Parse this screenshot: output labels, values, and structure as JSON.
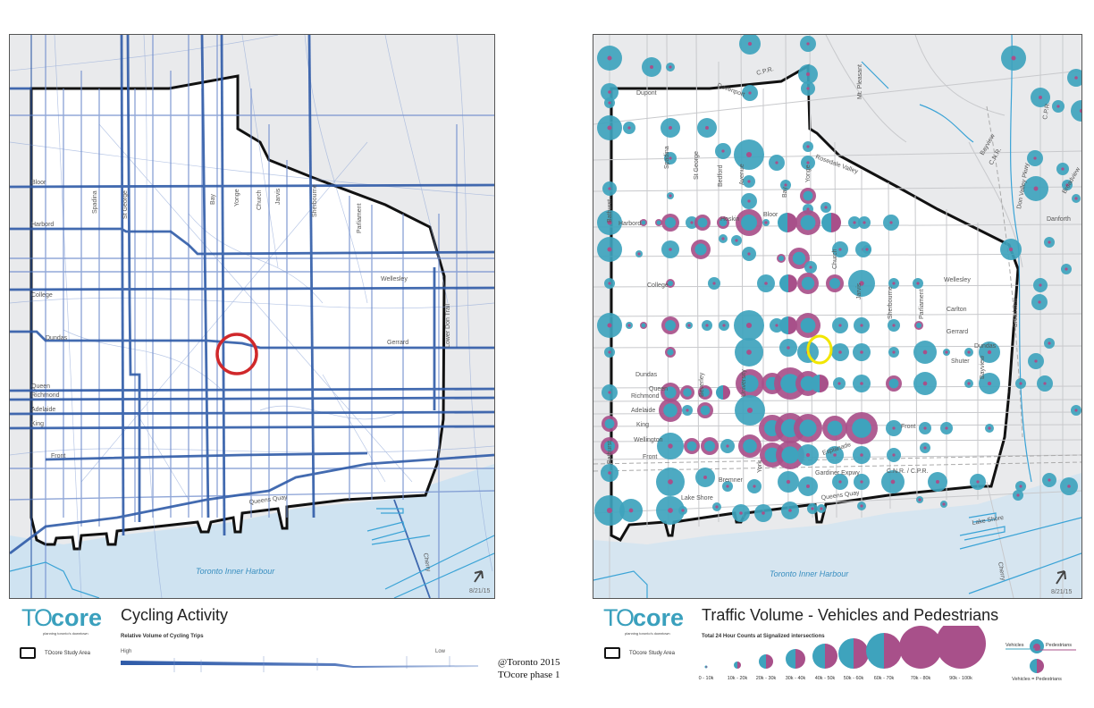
{
  "left_map": {
    "title": "Cycling Activity",
    "subtitle": "Relative Volume of Cycling Trips",
    "legend_high": "High",
    "legend_low": "Low",
    "study_area_label": "TOcore Study Area",
    "logo_to": "TO",
    "logo_core": "core",
    "logo_tagline": "planning toronto's downtown",
    "harbour_label": "Toronto Inner Harbour",
    "date": "8/21/15",
    "street_labels": {
      "bloor": "Bloor",
      "harbord": "Harbord",
      "college": "College",
      "dundas": "Dundas",
      "queen": "Queen",
      "richmond": "Richmond",
      "adelaide": "Adelaide",
      "king": "King",
      "front": "Front",
      "spadina": "Spadina",
      "st_george": "St George",
      "bay": "Bay",
      "yonge": "Yonge",
      "church": "Church",
      "jarvis": "Jarvis",
      "sherbourne": "Sherbourne",
      "parliament": "Parliament",
      "wellesley": "Wellesley",
      "gerrard": "Gerrard",
      "lower_don_trail": "Lower Don Trail",
      "queens_quay": "Queens Quay",
      "cherry": "Cherry"
    },
    "highlight_circle_color": "#d0282b",
    "line_color": "#2f5ba8"
  },
  "right_map": {
    "title": "Traffic Volume - Vehicles and Pedestrians",
    "subtitle": "Total 24 Hour Counts at Signalized intersections",
    "study_area_label": "TOcore Study Area",
    "logo_to": "TO",
    "logo_core": "core",
    "logo_tagline": "planning toronto's downtown",
    "harbour_label": "Toronto Inner Harbour",
    "date": "8/21/15",
    "legend_bins": [
      "0 - 10k",
      "10k - 20k",
      "20k - 30k",
      "30k - 40k",
      "40k - 50k",
      "50k - 60k",
      "60k - 70k",
      "70k - 80k",
      "90k - 100k"
    ],
    "legend_key_vehicles": "Vehicles",
    "legend_key_pedestrians": "Pedestrians",
    "legend_key_equal": "Vehicles = Pedestrians",
    "vehicle_color": "#3ea3bd",
    "pedestrian_color": "#a8508a",
    "highlight_circle_color": "#f2e600",
    "street_labels": {
      "dupont": "Dupont",
      "davenport": "Davenport",
      "cpr": "C.P.R.",
      "bloor": "Bloor",
      "harbord": "Harbord",
      "hoskin": "Hoskin",
      "college": "College",
      "dundas": "Dundas",
      "queen": "Queen",
      "richmond": "Richmond",
      "adelaide": "Adelaide",
      "king": "King",
      "wellington": "Wellington",
      "front": "Front",
      "bremner": "Bremner",
      "lake_shore": "Lake Shore",
      "gardiner": "Gardiner Expwy",
      "esplanade": "Esplanade",
      "queens_quay": "Queens Quay",
      "wellesley": "Wellesley",
      "carlton": "Carlton",
      "gerrard": "Gerrard",
      "shuter": "Shuter",
      "spadina": "Spadina",
      "st_george": "St George",
      "bedford": "Bedford",
      "avenue": "Avenue",
      "bay": "Bay",
      "yonge": "Yonge",
      "university": "University",
      "beverley": "Beverley",
      "york": "York",
      "church": "Church",
      "jarvis": "Jarvis",
      "sherbourne": "Sherbourne",
      "parliament": "Parliament",
      "bayview": "Bayview",
      "mt_pleasant": "Mt. Pleasant",
      "rosedale_valley": "Rosedale Valley",
      "don_valley_pkwy": "Don Valley Pkwy",
      "cnr_cpr": "C.N.R. / C.P.R.",
      "danforth": "Danforth",
      "broadview": "Broadview",
      "cherry": "Cherry",
      "bathurst": "Bathurst",
      "cnr": "C.N.R."
    }
  },
  "credit": {
    "line1": "@Toronto 2015",
    "line2": "TOcore phase 1"
  }
}
